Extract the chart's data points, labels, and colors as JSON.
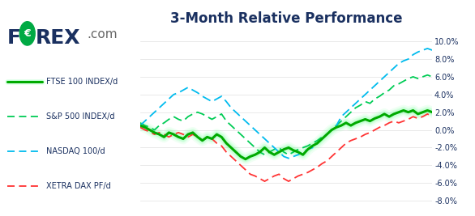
{
  "title": "3-Month Relative Performance",
  "title_color": "#1a3060",
  "title_fontsize": 12,
  "background_color": "#ffffff",
  "ylim": [
    -8.5,
    11.5
  ],
  "yticks": [
    -8.0,
    -6.0,
    -4.0,
    -2.0,
    0.0,
    2.0,
    4.0,
    6.0,
    8.0,
    10.0
  ],
  "ytick_labels": [
    "-8.0%",
    "-6.0%",
    "-4.0%",
    "-2.0%",
    "0.0%",
    "2.0%",
    "4.0%",
    "6.0%",
    "8.0%",
    "10.0%"
  ],
  "ytick_color": "#1a3060",
  "ftse_color": "#00aa00",
  "sp500_color": "#00cc55",
  "nasdaq_color": "#00bbee",
  "dax_color": "#ff3333",
  "glow_color": "#88ffaa",
  "legend_labels": [
    "FTSE 100 INDEX/d",
    "S&P 500 INDEX/d",
    "NASDAQ 100/d",
    "XETRA DAX PF/d"
  ],
  "legend_colors": [
    "#00aa00",
    "#00cc55",
    "#00bbee",
    "#ff3333"
  ],
  "legend_styles": [
    "solid",
    "dashed",
    "dashed",
    "dashed"
  ],
  "ftse": [
    0.5,
    0.3,
    0.0,
    -0.3,
    -0.5,
    -0.8,
    -0.3,
    -0.5,
    -0.8,
    -1.0,
    -0.5,
    -0.3,
    -0.8,
    -1.2,
    -0.8,
    -1.0,
    -0.5,
    -0.8,
    -1.5,
    -2.0,
    -2.5,
    -3.0,
    -3.3,
    -3.0,
    -2.8,
    -2.5,
    -2.0,
    -2.5,
    -2.8,
    -2.5,
    -2.2,
    -2.0,
    -2.3,
    -2.5,
    -2.8,
    -2.2,
    -1.8,
    -1.5,
    -1.0,
    -0.5,
    0.0,
    0.3,
    0.5,
    0.8,
    0.5,
    0.8,
    1.0,
    1.2,
    1.0,
    1.3,
    1.5,
    1.8,
    1.5,
    1.8,
    2.0,
    2.2,
    2.0,
    2.2,
    1.8,
    2.0,
    2.2,
    2.0
  ],
  "sp500": [
    0.8,
    0.5,
    0.3,
    0.0,
    0.5,
    0.8,
    1.2,
    1.5,
    1.2,
    1.0,
    1.5,
    1.8,
    2.0,
    1.8,
    1.5,
    1.2,
    1.5,
    1.8,
    1.0,
    0.5,
    0.0,
    -0.5,
    -1.0,
    -1.5,
    -2.0,
    -2.5,
    -2.8,
    -2.5,
    -2.2,
    -2.0,
    -2.5,
    -2.8,
    -2.5,
    -2.2,
    -2.0,
    -1.8,
    -1.5,
    -1.2,
    -0.8,
    -0.5,
    0.0,
    0.5,
    1.0,
    1.5,
    2.0,
    2.5,
    2.8,
    3.2,
    3.0,
    3.5,
    3.8,
    4.2,
    4.5,
    5.0,
    5.2,
    5.5,
    5.8,
    6.0,
    5.8,
    6.0,
    6.2,
    6.0
  ],
  "nasdaq": [
    0.5,
    1.0,
    1.5,
    2.0,
    2.5,
    3.0,
    3.5,
    4.0,
    4.2,
    4.5,
    4.8,
    4.5,
    4.2,
    3.8,
    3.5,
    3.2,
    3.5,
    3.8,
    3.2,
    2.5,
    2.0,
    1.5,
    1.0,
    0.5,
    0.0,
    -0.5,
    -1.0,
    -1.5,
    -2.0,
    -2.5,
    -3.0,
    -3.2,
    -3.0,
    -2.8,
    -2.5,
    -2.2,
    -2.0,
    -1.5,
    -1.0,
    -0.5,
    0.0,
    0.5,
    1.5,
    2.0,
    2.5,
    3.0,
    3.5,
    4.0,
    4.5,
    5.0,
    5.5,
    6.0,
    6.5,
    7.0,
    7.5,
    7.8,
    8.0,
    8.5,
    8.8,
    9.0,
    9.2,
    9.0
  ],
  "dax": [
    0.3,
    0.0,
    -0.2,
    -0.5,
    -0.3,
    -0.5,
    -0.8,
    -0.5,
    -0.3,
    -0.5,
    -0.8,
    -0.5,
    -0.8,
    -1.2,
    -0.8,
    -1.0,
    -1.5,
    -1.8,
    -2.5,
    -3.0,
    -3.5,
    -4.0,
    -4.5,
    -5.0,
    -5.2,
    -5.5,
    -5.8,
    -5.5,
    -5.2,
    -5.0,
    -5.5,
    -5.8,
    -5.5,
    -5.2,
    -5.0,
    -4.8,
    -4.5,
    -4.2,
    -3.8,
    -3.5,
    -3.0,
    -2.5,
    -2.0,
    -1.5,
    -1.2,
    -1.0,
    -0.8,
    -0.5,
    -0.3,
    0.0,
    0.3,
    0.5,
    0.8,
    1.0,
    0.8,
    1.0,
    1.2,
    1.5,
    1.3,
    1.5,
    1.8,
    1.5
  ]
}
